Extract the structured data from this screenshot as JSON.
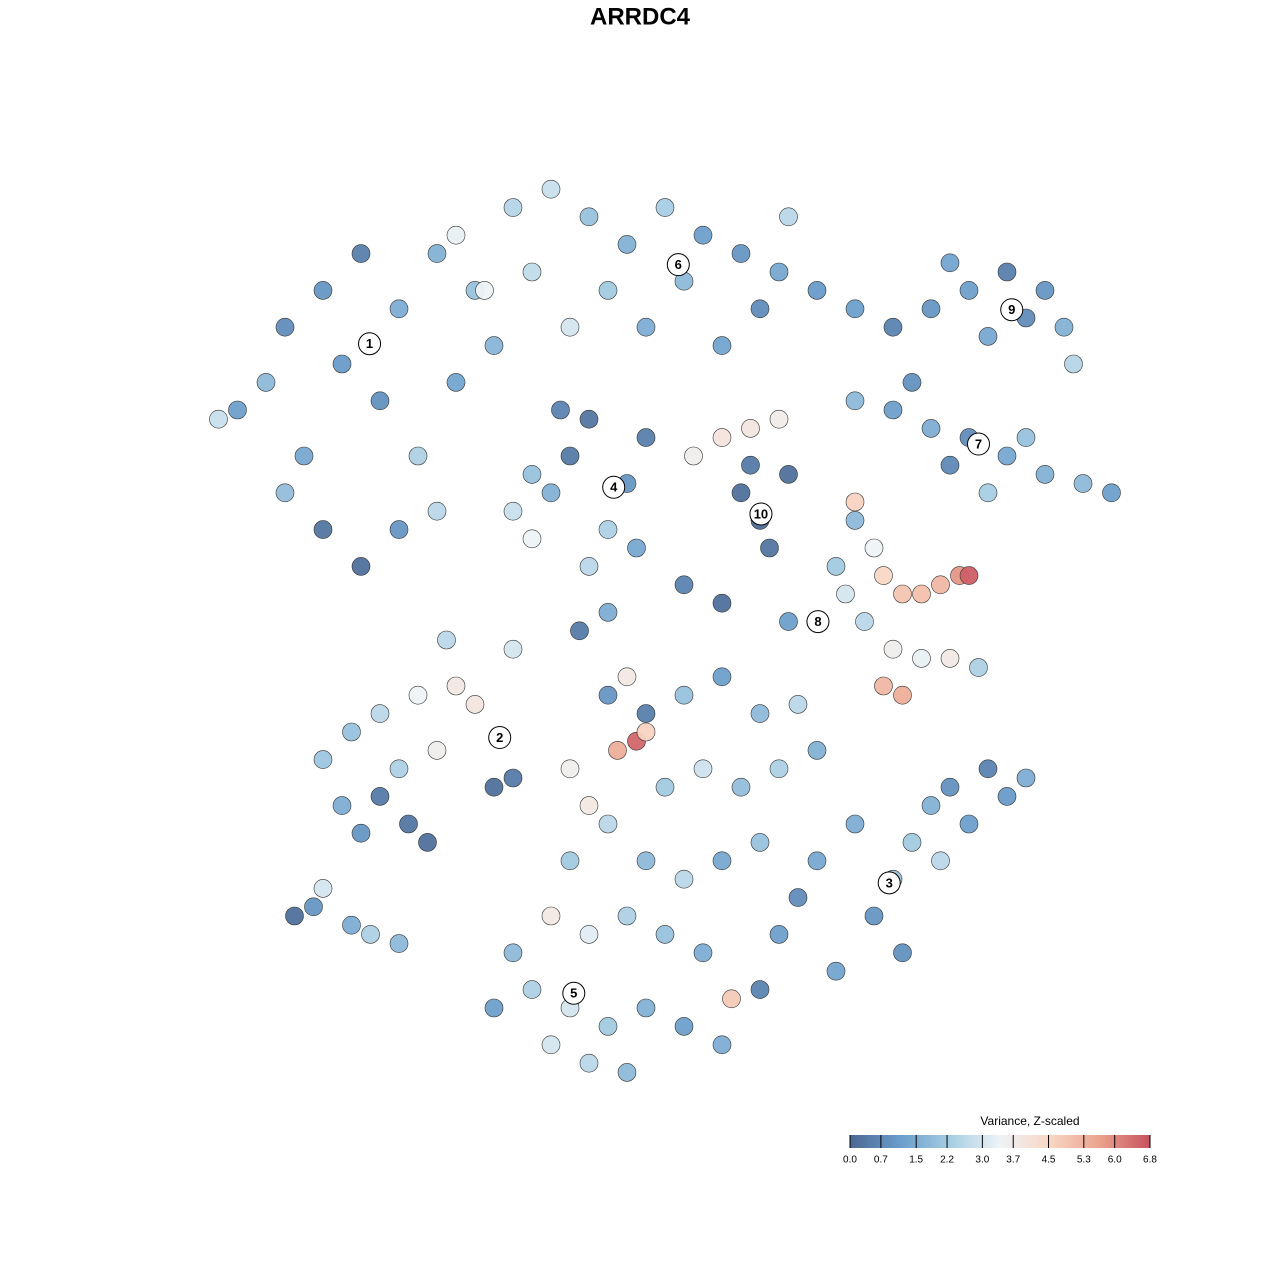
{
  "chart_data": {
    "type": "scatter",
    "title": "ARRDC4",
    "xlim": [
      0,
      100
    ],
    "ylim": [
      0,
      100
    ],
    "x": [
      5,
      8,
      10,
      14,
      18,
      22,
      16,
      20,
      12,
      24,
      28,
      30,
      26,
      14,
      18,
      22,
      26,
      3,
      10,
      32,
      28,
      34,
      38,
      42,
      46,
      50,
      54,
      58,
      62,
      66,
      60,
      52,
      44,
      36,
      40,
      48,
      56,
      63,
      31,
      70,
      74,
      78,
      82,
      86,
      90,
      92,
      93,
      84,
      88,
      80,
      70,
      74,
      78,
      82,
      86,
      90,
      94,
      97,
      88,
      80,
      76,
      84,
      34,
      36,
      38,
      40,
      42,
      44,
      46,
      48,
      36,
      42,
      47,
      39,
      53,
      56,
      59,
      62,
      58,
      60,
      61,
      63,
      59,
      68,
      69,
      70,
      72,
      73,
      75,
      77,
      79,
      81,
      82,
      71,
      74,
      77,
      80,
      83,
      73,
      75,
      66,
      63,
      70,
      16,
      18,
      20,
      23,
      25,
      17,
      20,
      24,
      28,
      30,
      26,
      22,
      32,
      34,
      14,
      62,
      64,
      66,
      70,
      72,
      74,
      76,
      78,
      80,
      82,
      84,
      86,
      88,
      79,
      75,
      68,
      44,
      46,
      48,
      52,
      56,
      60,
      64,
      45,
      47,
      48,
      40,
      42,
      44,
      50,
      54,
      58,
      62,
      66,
      40,
      48,
      52,
      56,
      60,
      38,
      42,
      46,
      50,
      54,
      34,
      36,
      40,
      44,
      48,
      52,
      56,
      42,
      46,
      38,
      60,
      57,
      32,
      11,
      13,
      17,
      19,
      22,
      14,
      27,
      34,
      41,
      44,
      52,
      56
    ],
    "y": [
      75,
      78,
      84,
      88,
      92,
      86,
      80,
      76,
      70,
      70,
      78,
      88,
      92,
      62,
      58,
      62,
      64,
      74,
      66,
      82,
      94,
      97,
      99,
      96,
      93,
      97,
      94,
      92,
      90,
      88,
      86,
      89,
      88,
      90,
      84,
      84,
      82,
      96,
      88,
      86,
      84,
      86,
      88,
      90,
      88,
      84,
      80,
      83,
      85,
      91,
      76,
      75,
      73,
      72,
      70,
      68,
      67,
      66,
      72,
      69,
      78,
      66,
      64,
      61,
      66,
      70,
      74,
      62,
      67,
      72,
      68,
      58,
      60,
      75,
      70,
      72,
      73,
      74,
      66,
      63,
      60,
      68,
      69,
      58,
      55,
      63,
      60,
      57,
      55,
      55,
      56,
      57,
      57,
      52,
      49,
      48,
      48,
      47,
      45,
      44,
      52,
      52,
      65,
      32,
      29,
      33,
      30,
      28,
      40,
      42,
      44,
      45,
      43,
      38,
      36,
      34,
      35,
      37,
      18,
      22,
      26,
      30,
      20,
      24,
      28,
      32,
      34,
      30,
      36,
      33,
      35,
      26,
      16,
      14,
      44,
      46,
      42,
      44,
      46,
      42,
      43,
      38,
      39,
      40,
      36,
      32,
      30,
      34,
      36,
      34,
      36,
      38,
      26,
      26,
      24,
      26,
      28,
      20,
      18,
      20,
      18,
      16,
      16,
      12,
      10,
      8,
      10,
      8,
      6,
      4,
      3,
      6,
      12,
      11,
      10,
      20,
      21,
      19,
      18,
      17,
      23,
      50,
      49,
      51,
      53,
      56,
      54
    ],
    "values": [
      1.2,
      1.8,
      0.8,
      1.0,
      0.5,
      1.5,
      1.1,
      0.9,
      1.4,
      2.4,
      1.3,
      2.0,
      1.6,
      0.3,
      0.2,
      1.0,
      2.6,
      2.8,
      1.9,
      1.7,
      3.3,
      2.5,
      2.8,
      2.0,
      1.6,
      2.3,
      1.2,
      1.0,
      1.4,
      1.1,
      0.8,
      1.8,
      2.2,
      2.7,
      3.0,
      1.5,
      1.3,
      2.6,
      3.4,
      1.2,
      0.6,
      1.0,
      1.2,
      0.5,
      1.0,
      1.6,
      2.5,
      1.4,
      0.8,
      1.3,
      1.8,
      1.2,
      1.5,
      0.8,
      1.4,
      1.6,
      1.8,
      1.2,
      2.0,
      0.7,
      0.9,
      2.3,
      2.8,
      3.4,
      1.6,
      0.4,
      0.3,
      2.4,
      1.0,
      0.5,
      2.0,
      2.6,
      1.4,
      0.6,
      3.6,
      4.0,
      3.9,
      3.7,
      0.2,
      0.1,
      0.3,
      0.2,
      0.4,
      2.2,
      3.0,
      1.8,
      3.4,
      4.5,
      4.9,
      5.0,
      5.2,
      5.8,
      6.6,
      2.6,
      3.6,
      3.3,
      3.8,
      2.4,
      5.2,
      5.4,
      1.6,
      1.2,
      4.6,
      1.5,
      1.0,
      0.4,
      0.3,
      0.2,
      2.0,
      2.6,
      3.4,
      3.8,
      3.9,
      3.6,
      2.4,
      0.2,
      0.4,
      2.1,
      1.2,
      0.8,
      1.4,
      1.5,
      1.0,
      2.0,
      2.2,
      1.6,
      0.9,
      1.2,
      0.6,
      1.1,
      1.5,
      2.6,
      0.9,
      1.3,
      1.0,
      3.8,
      0.5,
      2.0,
      1.2,
      1.8,
      2.6,
      5.4,
      6.5,
      4.6,
      3.6,
      3.8,
      2.6,
      2.2,
      2.9,
      1.9,
      2.4,
      1.6,
      2.2,
      1.8,
      2.6,
      1.4,
      2.0,
      3.8,
      3.2,
      2.4,
      2.0,
      1.5,
      1.8,
      2.4,
      3.0,
      2.2,
      1.6,
      1.2,
      1.5,
      2.6,
      1.8,
      3.0,
      0.6,
      4.8,
      1.2,
      0.2,
      1.0,
      1.5,
      2.4,
      1.8,
      3.0,
      2.6,
      3.0,
      0.4,
      1.5,
      0.6,
      0.2
    ],
    "colorscale": [
      "#4a6892",
      "#6a9dcb",
      "#a6cde3",
      "#eef3f6",
      "#f9d6c4",
      "#eaa28d",
      "#c8515e"
    ],
    "clim": [
      0,
      6.8
    ],
    "colorbar": {
      "title": "Variance, Z-scaled",
      "ticks": [
        {
          "value": 0,
          "label": "0.0"
        },
        0.7,
        1.5,
        2.2,
        {
          "value": 3,
          "label": "3.0"
        },
        3.7,
        4.5,
        5.3,
        {
          "value": 6,
          "label": "6.0"
        },
        6.8
      ]
    },
    "clusters": {
      "labels": [
        "1",
        "6",
        "9",
        "7",
        "4",
        "10",
        "8",
        "2",
        "3",
        "5"
      ],
      "x": [
        18.9,
        51.4,
        86.5,
        83,
        44.6,
        60.1,
        66.1,
        32.6,
        73.6,
        40.4
      ],
      "y": [
        82.2,
        90.8,
        85.9,
        71.3,
        66.6,
        63.7,
        52,
        39.4,
        23.6,
        11.6
      ]
    }
  }
}
